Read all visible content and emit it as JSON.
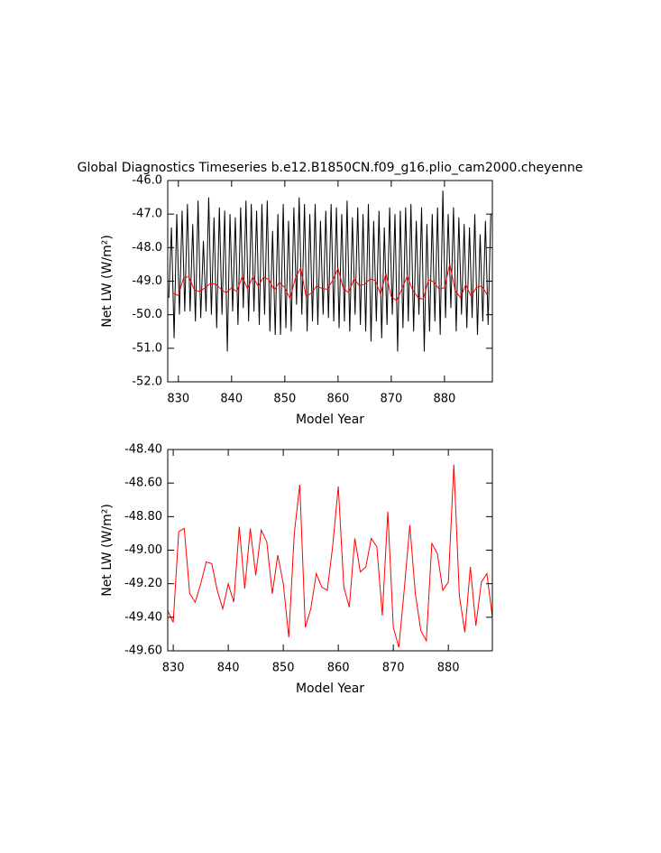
{
  "chart_data": [
    {
      "type": "line",
      "title": "Global Diagnostics Timeseries b.e12.B1850CN.f09_g16.plio_cam2000.cheyenne",
      "xlabel": "Model Year",
      "ylabel": "Net LW (W/m²)",
      "xlim": [
        828,
        889
      ],
      "ylim": [
        -52,
        -46
      ],
      "xticks": [
        830,
        840,
        850,
        860,
        870,
        880
      ],
      "yticks": [
        {
          "value": -52,
          "label": "-52.0"
        },
        {
          "value": -51,
          "label": "-51.0"
        },
        {
          "value": -50,
          "label": "-50.0"
        },
        {
          "value": -49,
          "label": "-49.0"
        },
        {
          "value": -48,
          "label": "-48.0"
        },
        {
          "value": -47,
          "label": "-47.0"
        },
        {
          "value": -46,
          "label": "-46.0"
        }
      ],
      "series": [
        {
          "color": "#000000",
          "x": [
            828.2,
            828.7,
            829.2,
            829.7,
            830.2,
            830.7,
            831.2,
            831.7,
            832.2,
            832.7,
            833.2,
            833.7,
            834.2,
            834.7,
            835.2,
            835.7,
            836.2,
            836.7,
            837.2,
            837.7,
            838.2,
            838.7,
            839.2,
            839.7,
            840.2,
            840.7,
            841.2,
            841.7,
            842.2,
            842.7,
            843.2,
            843.7,
            844.2,
            844.7,
            845.2,
            845.7,
            846.2,
            846.7,
            847.2,
            847.7,
            848.2,
            848.7,
            849.2,
            849.7,
            850.2,
            850.7,
            851.2,
            851.7,
            852.2,
            852.7,
            853.2,
            853.7,
            854.2,
            854.7,
            855.2,
            855.7,
            856.2,
            856.7,
            857.2,
            857.7,
            858.2,
            858.7,
            859.2,
            859.7,
            860.2,
            860.7,
            861.2,
            861.7,
            862.2,
            862.7,
            863.2,
            863.7,
            864.2,
            864.7,
            865.2,
            865.7,
            866.2,
            866.7,
            867.2,
            867.7,
            868.2,
            868.7,
            869.2,
            869.7,
            870.2,
            870.7,
            871.2,
            871.7,
            872.2,
            872.7,
            873.2,
            873.7,
            874.2,
            874.7,
            875.2,
            875.7,
            876.2,
            876.7,
            877.2,
            877.7,
            878.2,
            878.7,
            879.2,
            879.7,
            880.2,
            880.7,
            881.2,
            881.7,
            882.2,
            882.7,
            883.2,
            883.7,
            884.2,
            884.7,
            885.2,
            885.7,
            886.2,
            886.7,
            887.2,
            887.7,
            888.2,
            888.7
          ],
          "values": [
            -49.5,
            -47.4,
            -50.7,
            -47.0,
            -50.0,
            -46.9,
            -49.9,
            -46.7,
            -49.9,
            -47.3,
            -50.2,
            -46.6,
            -50.1,
            -47.8,
            -49.9,
            -46.5,
            -50.0,
            -47.1,
            -50.4,
            -46.8,
            -50.0,
            -46.9,
            -51.1,
            -47.0,
            -49.9,
            -47.1,
            -50.3,
            -46.8,
            -49.8,
            -46.6,
            -50.2,
            -46.7,
            -49.9,
            -46.9,
            -50.3,
            -46.7,
            -50.0,
            -46.6,
            -50.5,
            -47.5,
            -50.6,
            -47.0,
            -50.6,
            -46.7,
            -50.4,
            -47.2,
            -50.5,
            -46.8,
            -49.7,
            -46.5,
            -50.0,
            -46.7,
            -50.5,
            -47.0,
            -50.2,
            -46.7,
            -50.3,
            -47.2,
            -50.0,
            -46.9,
            -50.1,
            -46.7,
            -50.2,
            -46.8,
            -50.4,
            -47.0,
            -50.2,
            -46.6,
            -50.5,
            -47.1,
            -50.0,
            -46.8,
            -50.3,
            -47.0,
            -50.5,
            -46.7,
            -50.8,
            -47.2,
            -50.2,
            -46.9,
            -50.7,
            -47.4,
            -50.3,
            -46.8,
            -50.0,
            -47.0,
            -51.1,
            -46.9,
            -50.4,
            -46.8,
            -50.2,
            -46.7,
            -50.5,
            -47.2,
            -50.0,
            -46.8,
            -51.1,
            -47.3,
            -50.5,
            -47.0,
            -50.2,
            -46.8,
            -50.6,
            -46.3,
            -50.1,
            -47.0,
            -49.8,
            -46.8,
            -50.5,
            -47.1,
            -50.0,
            -47.3,
            -50.4,
            -47.4,
            -50.1,
            -47.0,
            -50.6,
            -47.6,
            -50.2,
            -47.2,
            -50.3,
            -47.0
          ]
        },
        {
          "color": "#ff0000",
          "x": [
            829,
            830,
            831,
            832,
            833,
            834,
            835,
            836,
            837,
            838,
            839,
            840,
            841,
            842,
            843,
            844,
            845,
            846,
            847,
            848,
            849,
            850,
            851,
            852,
            853,
            854,
            855,
            856,
            857,
            858,
            859,
            860,
            861,
            862,
            863,
            864,
            865,
            866,
            867,
            868,
            869,
            870,
            871,
            872,
            873,
            874,
            875,
            876,
            877,
            878,
            879,
            880,
            881,
            882,
            883,
            884,
            885,
            886,
            887,
            888
          ],
          "values": [
            -49.36,
            -49.43,
            -48.89,
            -48.87,
            -49.26,
            -49.31,
            -49.2,
            -49.07,
            -49.08,
            -49.24,
            -49.35,
            -49.2,
            -49.31,
            -48.86,
            -49.23,
            -48.87,
            -49.15,
            -48.88,
            -48.95,
            -49.26,
            -49.03,
            -49.2,
            -49.52,
            -48.9,
            -48.61,
            -49.46,
            -49.35,
            -49.14,
            -49.22,
            -49.24,
            -48.97,
            -48.62,
            -49.22,
            -49.34,
            -48.93,
            -49.13,
            -49.1,
            -48.93,
            -48.98,
            -49.39,
            -48.77,
            -49.46,
            -49.58,
            -49.23,
            -48.85,
            -49.26,
            -49.48,
            -49.54,
            -48.96,
            -49.02,
            -49.24,
            -49.19,
            -48.49,
            -49.27,
            -49.49,
            -49.1,
            -49.45,
            -49.19,
            -49.14,
            -49.4
          ]
        }
      ]
    },
    {
      "type": "line",
      "xlabel": "Model Year",
      "ylabel": "Net LW (W/m²)",
      "xlim": [
        829,
        888
      ],
      "ylim": [
        -49.6,
        -48.4
      ],
      "xticks": [
        830,
        840,
        850,
        860,
        870,
        880
      ],
      "yticks": [
        {
          "value": -49.6,
          "label": "-49.60"
        },
        {
          "value": -49.4,
          "label": "-49.40"
        },
        {
          "value": -49.2,
          "label": "-49.20"
        },
        {
          "value": -49.0,
          "label": "-49.00"
        },
        {
          "value": -48.8,
          "label": "-48.80"
        },
        {
          "value": -48.6,
          "label": "-48.60"
        },
        {
          "value": -48.4,
          "label": "-48.40"
        }
      ],
      "series": [
        {
          "color": "#ff0000",
          "x": [
            829,
            830,
            831,
            832,
            833,
            834,
            835,
            836,
            837,
            838,
            839,
            840,
            841,
            842,
            843,
            844,
            845,
            846,
            847,
            848,
            849,
            850,
            851,
            852,
            853,
            854,
            855,
            856,
            857,
            858,
            859,
            860,
            861,
            862,
            863,
            864,
            865,
            866,
            867,
            868,
            869,
            870,
            871,
            872,
            873,
            874,
            875,
            876,
            877,
            878,
            879,
            880,
            881,
            882,
            883,
            884,
            885,
            886,
            887,
            888
          ],
          "values": [
            -49.36,
            -49.43,
            -48.89,
            -48.87,
            -49.26,
            -49.31,
            -49.2,
            -49.07,
            -49.08,
            -49.24,
            -49.35,
            -49.2,
            -49.31,
            -48.86,
            -49.23,
            -48.87,
            -49.15,
            -48.88,
            -48.95,
            -49.26,
            -49.03,
            -49.2,
            -49.52,
            -48.9,
            -48.61,
            -49.46,
            -49.35,
            -49.14,
            -49.22,
            -49.24,
            -48.97,
            -48.62,
            -49.22,
            -49.34,
            -48.93,
            -49.13,
            -49.1,
            -48.93,
            -48.98,
            -49.39,
            -48.77,
            -49.46,
            -49.58,
            -49.23,
            -48.85,
            -49.26,
            -49.48,
            -49.54,
            -48.96,
            -49.02,
            -49.24,
            -49.19,
            -48.49,
            -49.27,
            -49.49,
            -49.1,
            -49.45,
            -49.19,
            -49.14,
            -49.4
          ]
        }
      ]
    }
  ]
}
